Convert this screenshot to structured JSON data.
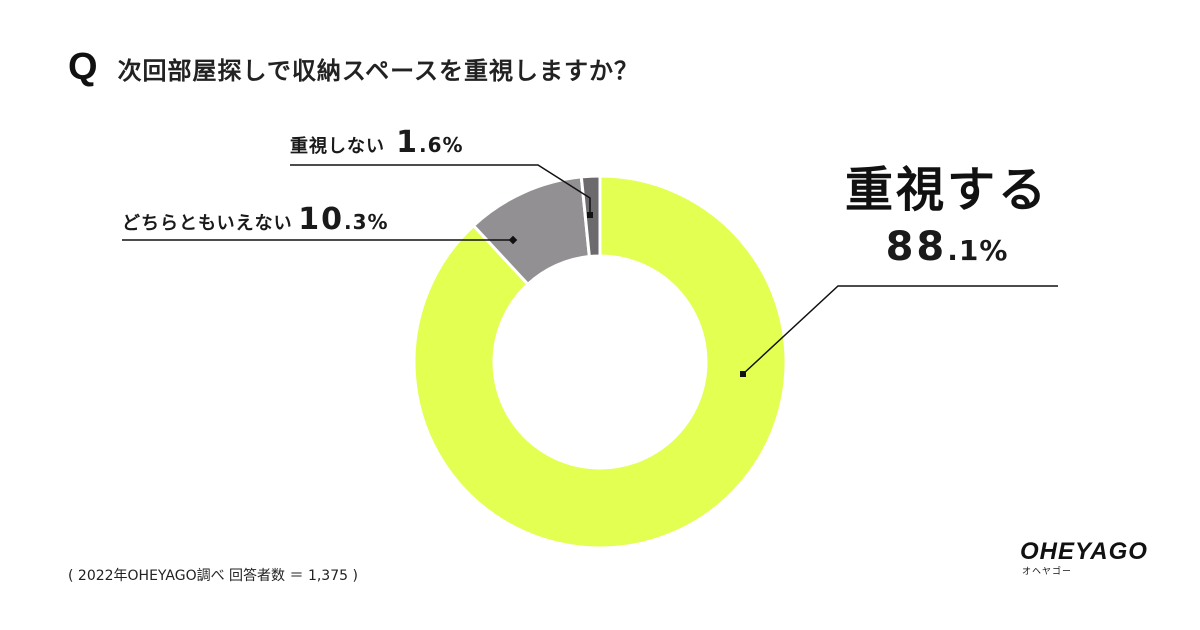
{
  "header": {
    "q_mark": "Q",
    "question": "次回部屋探しで収納スペースを重視しますか？"
  },
  "chart_data": {
    "type": "pie",
    "donut": true,
    "slices": [
      {
        "label": "重視する",
        "value": 88.1,
        "pct_int": "88",
        "pct_rest": ".1%",
        "color": "#e3ff52"
      },
      {
        "label": "どちらともいえない",
        "value": 10.3,
        "pct_int": "10",
        "pct_rest": ".3%",
        "color": "#929093"
      },
      {
        "label": "重視しない",
        "value": 1.6,
        "pct_int": "1",
        "pct_rest": ".6%",
        "color": "#6c6a6d"
      }
    ]
  },
  "footnote": "( 2022年OHEYAGO調べ 回答者数 ＝ 1,375 )",
  "logo": {
    "main": "OHEYAGO",
    "sub": "オヘヤゴー"
  }
}
